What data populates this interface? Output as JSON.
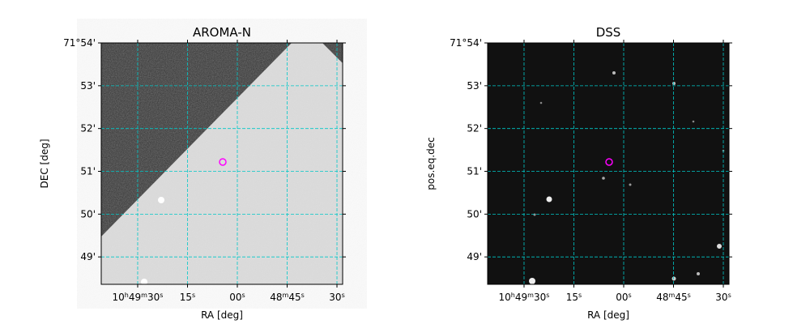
{
  "chart_data": [
    {
      "type": "image",
      "title": "AROMA-N",
      "xlabel": "RA [deg]",
      "ylabel": "DEC [deg]",
      "xlim": [
        162.4207,
        162.1179
      ],
      "ylim": [
        71.806,
        71.9
      ],
      "xticks": [
        {
          "value": 162.375,
          "label": "10h49m30s"
        },
        {
          "value": 162.3125,
          "label": "15s"
        },
        {
          "value": 162.25,
          "label": "00s"
        },
        {
          "value": 162.1875,
          "label": "48m45s"
        },
        {
          "value": 162.125,
          "label": "30s"
        }
      ],
      "yticks": [
        {
          "value": 71.9,
          "label": "71°54'"
        },
        {
          "value": 71.88333,
          "label": "53'"
        },
        {
          "value": 71.86667,
          "label": "52'"
        },
        {
          "value": 71.85,
          "label": "51'"
        },
        {
          "value": 71.83333,
          "label": "50'"
        },
        {
          "value": 71.81667,
          "label": "49'"
        }
      ],
      "grid": true
    },
    {
      "type": "image",
      "title": "DSS",
      "xlabel": "RA [deg]",
      "ylabel": "pos.eq.dec",
      "xlim": [
        162.4207,
        162.1179
      ],
      "ylim": [
        71.806,
        71.9
      ],
      "xticks": [
        {
          "value": 162.375,
          "label": "10h49m30s"
        },
        {
          "value": 162.3125,
          "label": "15s"
        },
        {
          "value": 162.25,
          "label": "00s"
        },
        {
          "value": 162.1875,
          "label": "48m45s"
        },
        {
          "value": 162.125,
          "label": "30s"
        }
      ],
      "yticks": [
        {
          "value": 71.9,
          "label": "71°54'"
        },
        {
          "value": 71.88333,
          "label": "53'"
        },
        {
          "value": 71.86667,
          "label": "52'"
        },
        {
          "value": 71.85,
          "label": "51'"
        },
        {
          "value": 71.83333,
          "label": "50'"
        },
        {
          "value": 71.81667,
          "label": "49'"
        }
      ],
      "grid": true
    }
  ]
}
